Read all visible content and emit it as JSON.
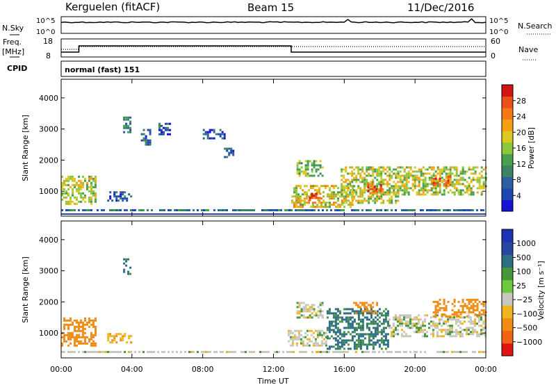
{
  "header": {
    "station": "Kerguelen (fitACF)",
    "beam": "Beam 15",
    "date": "11/Dec/2016"
  },
  "top_panels": {
    "nsky_label": "N.Sky",
    "nsky_ticks": [
      "10^5",
      "10^0"
    ],
    "nsearch_label": "N.Search",
    "nsearch_ticks": [
      "10^5",
      "10^0"
    ],
    "freq_label": "Freq.",
    "freq_unit": "[MHz]",
    "freq_ticks": [
      "18",
      "8"
    ],
    "nave_label": "Nave",
    "nave_ticks": [
      "60",
      "0"
    ],
    "cpid_label": "CPID",
    "cpid_value": "normal (fast) 151"
  },
  "colors": {
    "power_scale": [
      "#1414d2",
      "#1e46b4",
      "#2d5fa0",
      "#3c8264",
      "#46a050",
      "#8cc83c",
      "#dcc81e",
      "#f5a014",
      "#f57814",
      "#eb5014",
      "#d21414"
    ],
    "velocity_scale": [
      "#1e32b4",
      "#2846a0",
      "#2d6e82",
      "#46963c",
      "#6ec83c",
      "#c8c8be",
      "#f0b41e",
      "#f08c14",
      "#f06414",
      "#e11414"
    ]
  },
  "chart_data": [
    {
      "type": "heatmap",
      "panel": "power",
      "ylabel": "Slant Range [km]",
      "xlabel": "",
      "ylim": [
        200,
        4600
      ],
      "y_ticks": [
        "1000",
        "2000",
        "3000",
        "4000"
      ],
      "x_ticks": [
        "00:00",
        "04:00",
        "08:00",
        "12:00",
        "16:00",
        "20:00",
        "00:00"
      ],
      "colorbar": {
        "label": "Power [dB]",
        "ticks": [
          "4",
          "8",
          "12",
          "16",
          "20",
          "24",
          "28"
        ],
        "range": [
          0,
          30
        ]
      },
      "regions": [
        {
          "t0": 0.0,
          "t1": 1.9,
          "r0": 600,
          "r1": 1500,
          "value": 16
        },
        {
          "t0": 2.6,
          "t1": 4.0,
          "r0": 700,
          "r1": 1000,
          "value": 6
        },
        {
          "t0": 3.5,
          "t1": 3.9,
          "r0": 2900,
          "r1": 3400,
          "value": 7
        },
        {
          "t0": 4.5,
          "t1": 5.0,
          "r0": 2500,
          "r1": 3000,
          "value": 6
        },
        {
          "t0": 5.5,
          "t1": 6.2,
          "r0": 2800,
          "r1": 3200,
          "value": 6
        },
        {
          "t0": 8.0,
          "t1": 9.2,
          "r0": 2700,
          "r1": 3000,
          "value": 5
        },
        {
          "t0": 9.2,
          "t1": 9.7,
          "r0": 2100,
          "r1": 2400,
          "value": 6
        },
        {
          "t0": 13.0,
          "t1": 16.5,
          "r0": 500,
          "r1": 1200,
          "value": 18
        },
        {
          "t0": 13.3,
          "t1": 14.8,
          "r0": 1500,
          "r1": 2000,
          "value": 14
        },
        {
          "t0": 15.8,
          "t1": 19.0,
          "r0": 600,
          "r1": 1800,
          "value": 16
        },
        {
          "t0": 19.0,
          "t1": 24.0,
          "r0": 900,
          "r1": 1800,
          "value": 16
        },
        {
          "t0": 14.0,
          "t1": 14.6,
          "r0": 700,
          "r1": 950,
          "value": 26
        },
        {
          "t0": 17.3,
          "t1": 18.2,
          "r0": 900,
          "r1": 1300,
          "value": 24
        },
        {
          "t0": 21.0,
          "t1": 22.0,
          "r0": 1200,
          "r1": 1500,
          "value": 24
        }
      ]
    },
    {
      "type": "heatmap",
      "panel": "velocity",
      "ylabel": "Slant Range [km]",
      "xlabel": "Time UT",
      "ylim": [
        200,
        4600
      ],
      "y_ticks": [
        "1000",
        "2000",
        "3000",
        "4000"
      ],
      "x_ticks": [
        "00:00",
        "04:00",
        "08:00",
        "12:00",
        "16:00",
        "20:00",
        "00:00"
      ],
      "colorbar": {
        "label": "Velocity [m s⁻¹]",
        "ticks": [
          "1000",
          "500",
          "100",
          "25",
          "−25",
          "−100",
          "−500",
          "−1000"
        ]
      },
      "regions": [
        {
          "t0": 0.0,
          "t1": 2.0,
          "r0": 600,
          "r1": 1500,
          "value": -200
        },
        {
          "t0": 2.6,
          "t1": 4.0,
          "r0": 700,
          "r1": 1000,
          "value": -80
        },
        {
          "t0": 3.5,
          "t1": 3.9,
          "r0": 2900,
          "r1": 3400,
          "value": 80
        },
        {
          "t0": 12.8,
          "t1": 15.0,
          "r0": 600,
          "r1": 1100,
          "value": 0
        },
        {
          "t0": 13.3,
          "t1": 14.8,
          "r0": 1500,
          "r1": 2000,
          "value": 0
        },
        {
          "t0": 15.0,
          "t1": 18.5,
          "r0": 500,
          "r1": 1800,
          "value": 80
        },
        {
          "t0": 18.5,
          "t1": 24.0,
          "r0": 900,
          "r1": 1600,
          "value": 0
        },
        {
          "t0": 21.0,
          "t1": 24.0,
          "r0": 1500,
          "r1": 2100,
          "value": -200
        },
        {
          "t0": 16.5,
          "t1": 17.8,
          "r0": 1600,
          "r1": 2000,
          "value": -200
        }
      ]
    }
  ]
}
